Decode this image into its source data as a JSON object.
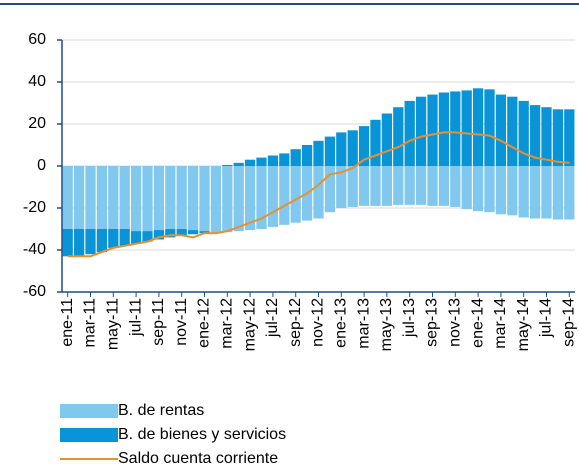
{
  "chart_data": {
    "type": "bar",
    "categories": [
      "ene-11",
      null,
      "mar-11",
      null,
      "may-11",
      null,
      "jul-11",
      null,
      "sep-11",
      null,
      "nov-11",
      null,
      "ene-12",
      null,
      "mar-12",
      null,
      "may-12",
      null,
      "jul-12",
      null,
      "sep-12",
      null,
      "nov-12",
      null,
      "ene-13",
      null,
      "mar-13",
      null,
      "may-13",
      null,
      "jul-13",
      null,
      "sep-13",
      null,
      "nov-13",
      null,
      "ene-14",
      null,
      "mar-14",
      null,
      "may-14",
      null,
      "jul-14",
      null,
      "sep-14"
    ],
    "series": [
      {
        "name": "B. de rentas",
        "type": "bar",
        "color": "#80c8ee",
        "values": [
          -30,
          -30,
          -30,
          -30,
          -30,
          -30,
          -31,
          -31,
          -30.5,
          -30,
          -30,
          -30.5,
          -31,
          -32,
          -31.5,
          -31,
          -30.5,
          -30,
          -29,
          -28,
          -27,
          -26,
          -25,
          -22,
          -20,
          -19.5,
          -19,
          -19,
          -19,
          -18.5,
          -18.5,
          -18.5,
          -19,
          -19,
          -19.5,
          -20.5,
          -21.5,
          -22,
          -23,
          -23.5,
          -24.5,
          -25,
          -25,
          -25.5,
          -25.5
        ]
      },
      {
        "name": "B. de bienes y servicios",
        "type": "bar",
        "color": "#0a94d8",
        "values": [
          -13,
          -13,
          -12,
          -11,
          -9,
          -8,
          -6,
          -5,
          -4.5,
          -4,
          -3,
          -2,
          -1,
          0,
          0.5,
          1.5,
          3,
          4,
          5,
          6,
          8,
          10,
          12,
          14,
          16,
          17,
          19,
          22,
          25,
          28,
          31,
          33,
          34,
          35,
          35.5,
          36,
          37,
          36.5,
          34,
          33,
          31,
          29,
          28,
          27,
          27
        ]
      },
      {
        "name": "Saldo cuenta corriente",
        "type": "line",
        "color": "#e8902e",
        "values": [
          -43,
          -43,
          -43,
          -41,
          -39,
          -38,
          -37,
          -36,
          -34,
          -33,
          -33,
          -34,
          -32,
          -32,
          -31,
          -29,
          -27,
          -25,
          -22,
          -19,
          -16,
          -13,
          -9,
          -4,
          -3,
          -1,
          3,
          5,
          7,
          9,
          12,
          14,
          15,
          16,
          16,
          15.5,
          15,
          14.5,
          12,
          9,
          6,
          4,
          3,
          2,
          1.5
        ]
      }
    ],
    "ylim": [
      -60,
      60
    ],
    "yticks": [
      -60,
      -40,
      -20,
      0,
      20,
      40,
      60
    ],
    "grid": true
  }
}
